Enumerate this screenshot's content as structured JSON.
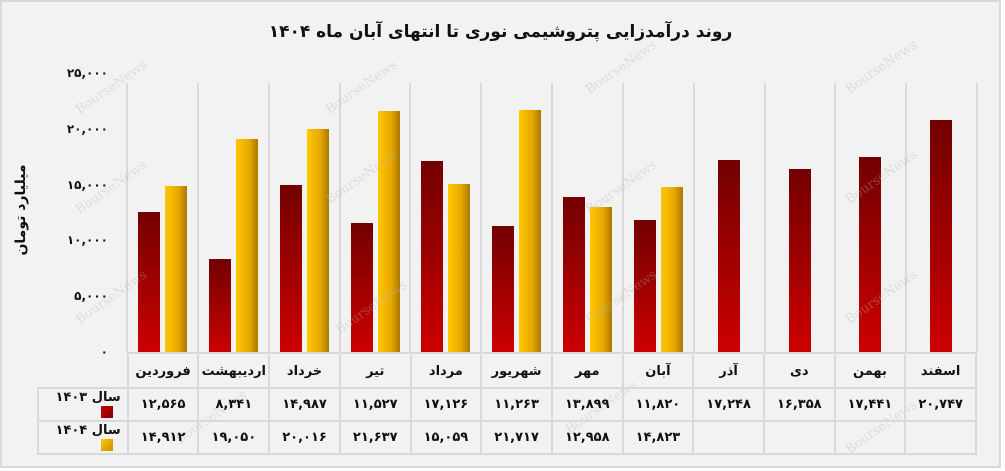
{
  "title": "روند درآمدزایی پتروشیمی نوری تا انتهای آبان ماه ۱۴۰۴",
  "y_axis": {
    "label": "میلیارد تومان",
    "ticks": [
      "۰",
      "۵,۰۰۰",
      "۱۰,۰۰۰",
      "۱۵,۰۰۰",
      "۲۰,۰۰۰",
      "۲۵,۰۰۰"
    ]
  },
  "watermark": "BourseNews",
  "legend": {
    "s1403": "سال ۱۴۰۳",
    "s1404": "سال ۱۴۰۴"
  },
  "months": [
    "فروردین",
    "اردیبهشت",
    "خرداد",
    "تیر",
    "مرداد",
    "شهریور",
    "مهر",
    "آبان",
    "آذر",
    "دی",
    "بهمن",
    "اسفند"
  ],
  "table": {
    "s1403": [
      "۱۲,۵۶۵",
      "۸,۳۴۱",
      "۱۴,۹۸۷",
      "۱۱,۵۲۷",
      "۱۷,۱۲۶",
      "۱۱,۲۶۳",
      "۱۳,۸۹۹",
      "۱۱,۸۲۰",
      "۱۷,۲۴۸",
      "۱۶,۳۵۸",
      "۱۷,۴۴۱",
      "۲۰,۷۴۷"
    ],
    "s1404": [
      "۱۴,۹۱۲",
      "۱۹,۰۵۰",
      "۲۰,۰۱۶",
      "۲۱,۶۳۷",
      "۱۵,۰۵۹",
      "۲۱,۷۱۷",
      "۱۲,۹۵۸",
      "۱۴,۸۲۳",
      "",
      "",
      "",
      ""
    ]
  },
  "colors": {
    "s1403_top": "#720000",
    "s1403_bottom": "#cc0000",
    "s1404_light": "#ffc800",
    "s1404_dark": "#a87800",
    "background": "#f2f2f2",
    "grid": "#d9d9d9"
  },
  "chart_data": {
    "type": "bar",
    "title": "روند درآمدزایی پتروشیمی نوری تا انتهای آبان ماه ۱۴۰۴",
    "xlabel": "",
    "ylabel": "میلیارد تومان",
    "ylim": [
      0,
      25000
    ],
    "yticks": [
      0,
      5000,
      10000,
      15000,
      20000,
      25000
    ],
    "grid": "vertical separators",
    "legend_position": "table-left",
    "categories": [
      "فروردین",
      "اردیبهشت",
      "خرداد",
      "تیر",
      "مرداد",
      "شهریور",
      "مهر",
      "آبان",
      "آذر",
      "دی",
      "بهمن",
      "اسفند"
    ],
    "series": [
      {
        "name": "سال ۱۴۰۳",
        "values": [
          12565,
          8341,
          14987,
          11527,
          17126,
          11263,
          13899,
          11820,
          17248,
          16358,
          17441,
          20747
        ]
      },
      {
        "name": "سال ۱۴۰۴",
        "values": [
          14912,
          19050,
          20016,
          21637,
          15059,
          21717,
          12958,
          14823,
          null,
          null,
          null,
          null
        ]
      }
    ]
  }
}
